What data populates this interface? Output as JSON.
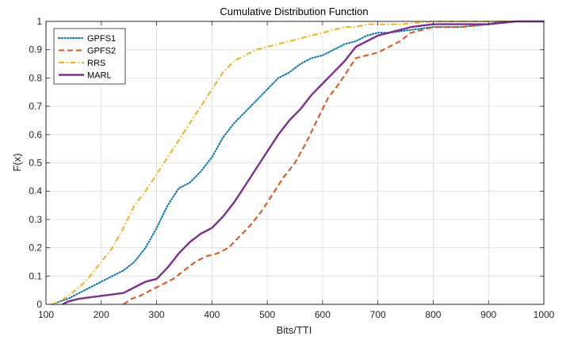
{
  "chart_data": {
    "type": "line",
    "title": "Cumulative Distribution Function",
    "xlabel": "Bits/TTI",
    "ylabel": "F(x)",
    "xlim": [
      100,
      1000
    ],
    "ylim": [
      0,
      1
    ],
    "xticks": [
      100,
      200,
      300,
      400,
      500,
      600,
      700,
      800,
      900,
      1000
    ],
    "yticks": [
      0,
      0.1,
      0.2,
      0.3,
      0.4,
      0.5,
      0.6,
      0.7,
      0.8,
      0.9,
      1
    ],
    "ytick_labels": [
      "0",
      "0.1",
      "0.2",
      "0.3",
      "0.4",
      "0.5",
      "0.6",
      "0.7",
      "0.8",
      "0.9",
      "1"
    ],
    "grid": true,
    "legend_position": "top-left",
    "series": [
      {
        "name": "GPFS1",
        "color": "#0072BD",
        "dash": "dotted",
        "points": [
          [
            112,
            0
          ],
          [
            125,
            0.01
          ],
          [
            140,
            0.02
          ],
          [
            160,
            0.04
          ],
          [
            180,
            0.06
          ],
          [
            200,
            0.08
          ],
          [
            220,
            0.1
          ],
          [
            240,
            0.12
          ],
          [
            260,
            0.15
          ],
          [
            280,
            0.2
          ],
          [
            300,
            0.27
          ],
          [
            320,
            0.35
          ],
          [
            340,
            0.41
          ],
          [
            360,
            0.43
          ],
          [
            380,
            0.47
          ],
          [
            400,
            0.52
          ],
          [
            420,
            0.59
          ],
          [
            440,
            0.64
          ],
          [
            460,
            0.68
          ],
          [
            480,
            0.72
          ],
          [
            500,
            0.76
          ],
          [
            520,
            0.8
          ],
          [
            540,
            0.82
          ],
          [
            560,
            0.85
          ],
          [
            580,
            0.87
          ],
          [
            600,
            0.88
          ],
          [
            620,
            0.9
          ],
          [
            640,
            0.92
          ],
          [
            660,
            0.93
          ],
          [
            680,
            0.95
          ],
          [
            700,
            0.96
          ],
          [
            720,
            0.96
          ],
          [
            760,
            0.97
          ],
          [
            800,
            0.98
          ],
          [
            850,
            0.98
          ],
          [
            900,
            0.99
          ],
          [
            920,
            1.0
          ],
          [
            1000,
            1.0
          ]
        ]
      },
      {
        "name": "GPFS2",
        "color": "#D95319",
        "dash": "dashed",
        "points": [
          [
            240,
            0
          ],
          [
            255,
            0.02
          ],
          [
            270,
            0.03
          ],
          [
            290,
            0.05
          ],
          [
            310,
            0.07
          ],
          [
            330,
            0.09
          ],
          [
            350,
            0.12
          ],
          [
            370,
            0.15
          ],
          [
            390,
            0.17
          ],
          [
            410,
            0.18
          ],
          [
            430,
            0.2
          ],
          [
            450,
            0.24
          ],
          [
            470,
            0.28
          ],
          [
            490,
            0.33
          ],
          [
            510,
            0.39
          ],
          [
            530,
            0.45
          ],
          [
            550,
            0.5
          ],
          [
            570,
            0.57
          ],
          [
            590,
            0.65
          ],
          [
            610,
            0.73
          ],
          [
            630,
            0.78
          ],
          [
            650,
            0.84
          ],
          [
            660,
            0.87
          ],
          [
            680,
            0.88
          ],
          [
            700,
            0.89
          ],
          [
            720,
            0.91
          ],
          [
            740,
            0.93
          ],
          [
            760,
            0.96
          ],
          [
            780,
            0.97
          ],
          [
            800,
            0.98
          ],
          [
            850,
            0.98
          ],
          [
            900,
            0.99
          ],
          [
            930,
            1.0
          ],
          [
            1000,
            1.0
          ]
        ]
      },
      {
        "name": "RRS",
        "color": "#EDB120",
        "dash": "dashdot",
        "points": [
          [
            110,
            0
          ],
          [
            125,
            0.01
          ],
          [
            140,
            0.03
          ],
          [
            160,
            0.06
          ],
          [
            180,
            0.1
          ],
          [
            200,
            0.15
          ],
          [
            220,
            0.2
          ],
          [
            240,
            0.27
          ],
          [
            260,
            0.35
          ],
          [
            280,
            0.4
          ],
          [
            300,
            0.46
          ],
          [
            320,
            0.52
          ],
          [
            340,
            0.58
          ],
          [
            360,
            0.64
          ],
          [
            380,
            0.7
          ],
          [
            400,
            0.76
          ],
          [
            420,
            0.82
          ],
          [
            440,
            0.86
          ],
          [
            460,
            0.88
          ],
          [
            480,
            0.9
          ],
          [
            500,
            0.91
          ],
          [
            520,
            0.92
          ],
          [
            540,
            0.93
          ],
          [
            560,
            0.94
          ],
          [
            580,
            0.95
          ],
          [
            600,
            0.96
          ],
          [
            620,
            0.97
          ],
          [
            640,
            0.98
          ],
          [
            660,
            0.98
          ],
          [
            680,
            0.99
          ],
          [
            700,
            0.99
          ],
          [
            740,
            0.99
          ],
          [
            800,
            1.0
          ],
          [
            1000,
            1.0
          ]
        ]
      },
      {
        "name": "MARL",
        "color": "#7E2F8E",
        "dash": "solid",
        "points": [
          [
            130,
            0
          ],
          [
            140,
            0.01
          ],
          [
            160,
            0.02
          ],
          [
            200,
            0.03
          ],
          [
            240,
            0.04
          ],
          [
            270,
            0.07
          ],
          [
            280,
            0.08
          ],
          [
            300,
            0.09
          ],
          [
            320,
            0.13
          ],
          [
            340,
            0.18
          ],
          [
            360,
            0.22
          ],
          [
            380,
            0.25
          ],
          [
            400,
            0.27
          ],
          [
            420,
            0.31
          ],
          [
            440,
            0.36
          ],
          [
            460,
            0.42
          ],
          [
            480,
            0.48
          ],
          [
            500,
            0.54
          ],
          [
            520,
            0.6
          ],
          [
            540,
            0.65
          ],
          [
            560,
            0.69
          ],
          [
            580,
            0.74
          ],
          [
            600,
            0.78
          ],
          [
            620,
            0.82
          ],
          [
            640,
            0.86
          ],
          [
            660,
            0.91
          ],
          [
            680,
            0.93
          ],
          [
            700,
            0.95
          ],
          [
            720,
            0.96
          ],
          [
            740,
            0.97
          ],
          [
            760,
            0.98
          ],
          [
            800,
            0.99
          ],
          [
            900,
            0.99
          ],
          [
            950,
            1.0
          ],
          [
            1000,
            1.0
          ]
        ]
      }
    ]
  }
}
